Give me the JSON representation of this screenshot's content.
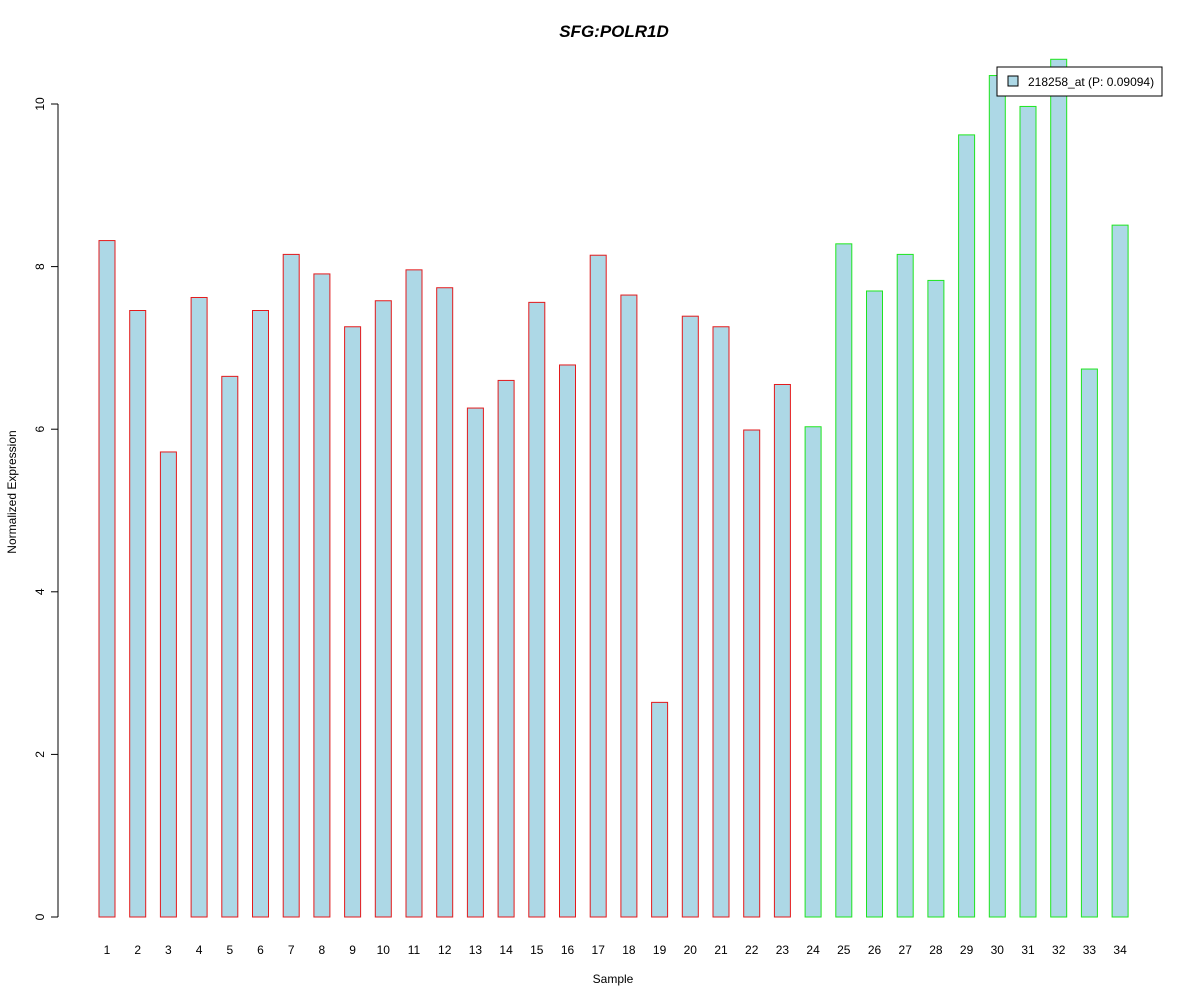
{
  "chart_data": {
    "type": "bar",
    "title": "SFG:POLR1D",
    "title_color": "#0000cc",
    "xlabel": "Sample",
    "ylabel": "Normalized Expression",
    "ylim": [
      0,
      10.55
    ],
    "yticks": [
      0,
      2,
      4,
      6,
      8,
      10
    ],
    "ytick_labels": [
      "0",
      "2",
      "4",
      "6",
      "8",
      "10"
    ],
    "grid": false,
    "legend": {
      "position": "top-right",
      "entries": [
        {
          "label": "218258_at (P: 0.09094)",
          "fill": "#add8e6"
        }
      ]
    },
    "bar_fill": "#add8e6",
    "group_colors": {
      "group1": "#e31a1c",
      "group2": "#1ee61e"
    },
    "categories": [
      "1",
      "2",
      "3",
      "4",
      "5",
      "6",
      "7",
      "8",
      "9",
      "10",
      "11",
      "12",
      "13",
      "14",
      "15",
      "16",
      "17",
      "18",
      "19",
      "20",
      "21",
      "22",
      "23",
      "24",
      "25",
      "26",
      "27",
      "28",
      "29",
      "30",
      "31",
      "32",
      "33",
      "34"
    ],
    "groups": [
      "group1",
      "group1",
      "group1",
      "group1",
      "group1",
      "group1",
      "group1",
      "group1",
      "group1",
      "group1",
      "group1",
      "group1",
      "group1",
      "group1",
      "group1",
      "group1",
      "group1",
      "group1",
      "group1",
      "group1",
      "group1",
      "group1",
      "group1",
      "group2",
      "group2",
      "group2",
      "group2",
      "group2",
      "group2",
      "group2",
      "group2",
      "group2",
      "group2",
      "group2"
    ],
    "series": [
      {
        "name": "218258_at (P: 0.09094)",
        "values": [
          8.32,
          7.46,
          5.72,
          7.62,
          6.65,
          7.46,
          8.15,
          7.91,
          7.26,
          7.58,
          7.96,
          7.74,
          6.26,
          6.6,
          7.56,
          6.79,
          8.14,
          7.65,
          2.64,
          7.39,
          7.26,
          5.99,
          6.55,
          6.03,
          8.28,
          7.7,
          8.15,
          7.83,
          9.62,
          10.35,
          9.97,
          10.55,
          6.74,
          8.51
        ]
      }
    ]
  }
}
